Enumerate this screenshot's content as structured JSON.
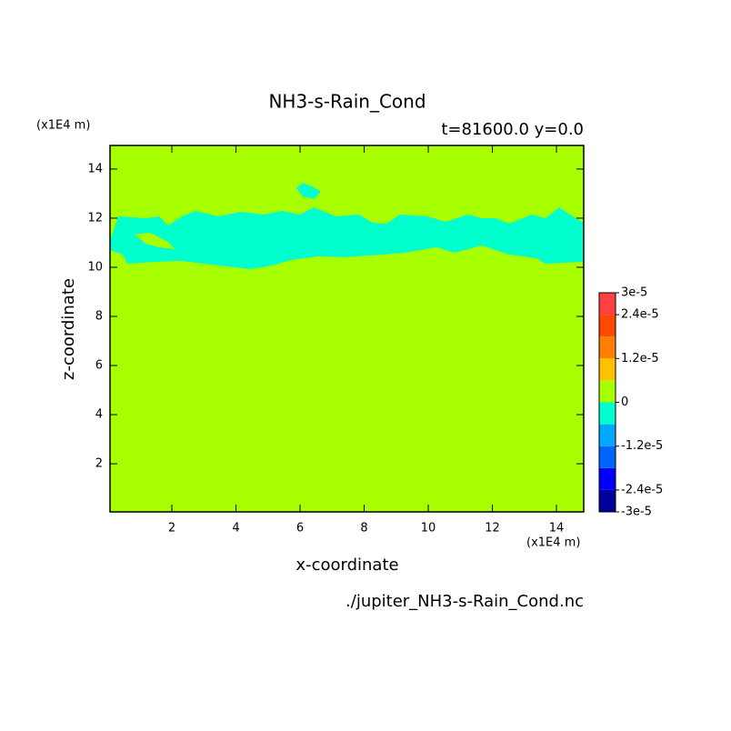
{
  "chart_data": {
    "type": "contour",
    "title": "NH3-s-Rain_Cond",
    "subtitle": "t=81600.0 y=0.0",
    "x_label": "x-coordinate",
    "y_label": "z-coordinate",
    "x_unit": "(x1E4 m)",
    "y_unit": "(x1E4 m)",
    "source": "./jupiter_NH3-s-Rain_Cond.nc",
    "xlim": [
      0.07,
      14.85
    ],
    "ylim": [
      0.04,
      14.96
    ],
    "xticks": [
      2,
      4,
      6,
      8,
      10,
      12,
      14
    ],
    "yticks": [
      2,
      4,
      6,
      8,
      10,
      12,
      14
    ],
    "colorbar": {
      "levels": [
        -3e-05,
        -2.4e-05,
        -1.8e-05,
        -1.2e-05,
        -6e-06,
        0,
        6e-06,
        1.2e-05,
        1.8e-05,
        2.4e-05,
        3e-05
      ],
      "colors": [
        "#00009a",
        "#0000ff",
        "#0064ff",
        "#00a8ff",
        "#00ffcc",
        "#a8ff00",
        "#ffc000",
        "#ff8000",
        "#ff4800",
        "#ff4040"
      ],
      "ticks": [
        {
          "value": -3e-05,
          "label": "-3e-5"
        },
        {
          "value": -2.4e-05,
          "label": "-2.4e-5"
        },
        {
          "value": -1.2e-05,
          "label": "-1.2e-5"
        },
        0,
        {
          "value": 1.2e-05,
          "label": "1.2e-5"
        },
        {
          "value": 2.4e-05,
          "label": "2.4e-5"
        },
        {
          "value": 3e-05,
          "label": "3e-5"
        }
      ]
    }
  }
}
